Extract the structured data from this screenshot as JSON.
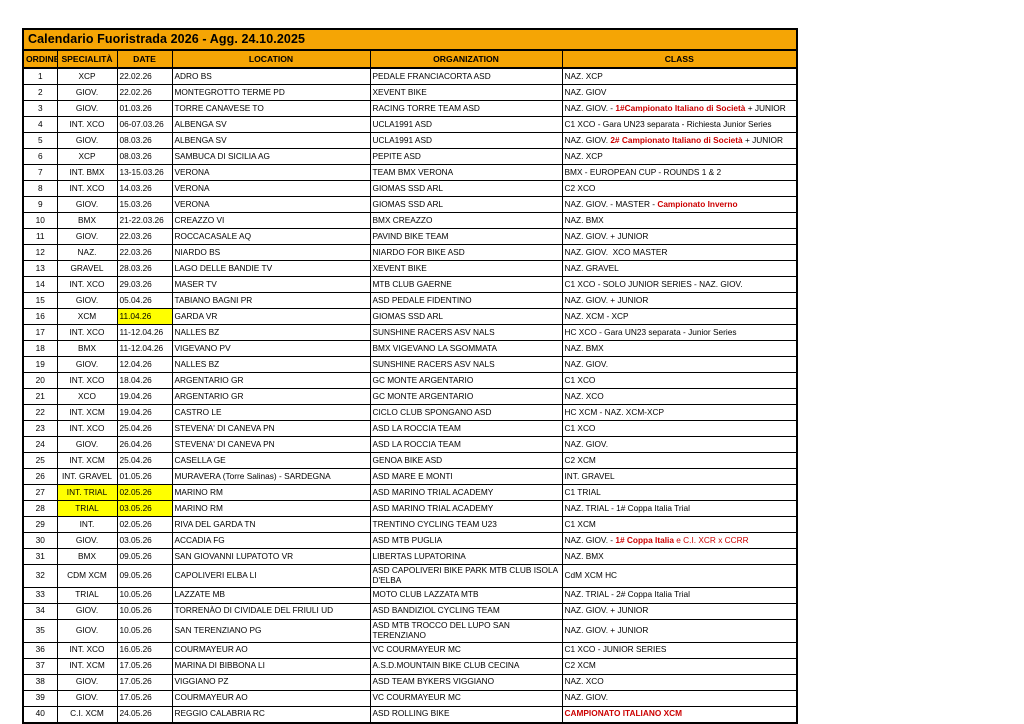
{
  "page": {
    "title": "Calendario Fuoristrada 2026 - Agg. 24.10.2025"
  },
  "colors": {
    "header_bg": "#F5A505",
    "highlight_yellow": "#FFFF00",
    "alert_red": "#CC0000",
    "border": "#000000"
  },
  "table": {
    "columns": [
      {
        "key": "ordine",
        "label": "ORDINE"
      },
      {
        "key": "specialita",
        "label": "SPECIALITÀ"
      },
      {
        "key": "date",
        "label": "DATE"
      },
      {
        "key": "location",
        "label": "LOCATION"
      },
      {
        "key": "organization",
        "label": "ORGANIZATION"
      },
      {
        "key": "class",
        "label": "CLASS"
      }
    ],
    "rows": [
      {
        "ordine": "1",
        "specialita": "XCP",
        "date": "22.02.26",
        "location": "ADRO BS",
        "organization": "PEDALE FRANCIACORTA ASD",
        "class_segments": [
          {
            "text": "NAZ. XCP",
            "style": "normal"
          }
        ]
      },
      {
        "ordine": "2",
        "specialita": "GIOV.",
        "date": "22.02.26",
        "location": "MONTEGROTTO TERME PD",
        "organization": "XEVENT BIKE",
        "class_segments": [
          {
            "text": "NAZ. GIOV",
            "style": "normal"
          }
        ]
      },
      {
        "ordine": "3",
        "specialita": "GIOV.",
        "date": "01.03.26",
        "location": "TORRE CANAVESE TO",
        "organization": "RACING TORRE TEAM ASD",
        "class_segments": [
          {
            "text": "NAZ. GIOV. - ",
            "style": "normal"
          },
          {
            "text": "1#Campionato Italiano di Società",
            "style": "red-bold"
          },
          {
            "text": " + JUNIOR",
            "style": "normal"
          }
        ]
      },
      {
        "ordine": "4",
        "specialita": "INT. XCO",
        "date": "06-07.03.26",
        "location": "ALBENGA SV",
        "organization": "UCLA1991 ASD",
        "class_segments": [
          {
            "text": "C1 XCO - Gara UN23 separata - Richiesta Junior Series",
            "style": "normal"
          }
        ]
      },
      {
        "ordine": "5",
        "specialita": "GIOV.",
        "date": "08.03.26",
        "location": "ALBENGA SV",
        "organization": "UCLA1991 ASD",
        "class_segments": [
          {
            "text": "NAZ. GIOV. ",
            "style": "normal"
          },
          {
            "text": "2# Campionato Italiano di Società",
            "style": "red-bold"
          },
          {
            "text": " + JUNIOR",
            "style": "normal"
          }
        ]
      },
      {
        "ordine": "6",
        "specialita": "XCP",
        "date": "08.03.26",
        "location": "SAMBUCA DI SICILIA AG",
        "organization": "PEPITE ASD",
        "class_segments": [
          {
            "text": "NAZ. XCP",
            "style": "normal"
          }
        ]
      },
      {
        "ordine": "7",
        "specialita": "INT. BMX",
        "date": "13-15.03.26",
        "location": "VERONA",
        "organization": "TEAM BMX VERONA",
        "class_segments": [
          {
            "text": "BMX - EUROPEAN CUP - ROUNDS 1 & 2",
            "style": "normal"
          }
        ]
      },
      {
        "ordine": "8",
        "specialita": "INT. XCO",
        "date": "14.03.26",
        "location": "VERONA",
        "organization": "GIOMAS SSD ARL",
        "class_segments": [
          {
            "text": "C2 XCO",
            "style": "normal"
          }
        ]
      },
      {
        "ordine": "9",
        "specialita": "GIOV.",
        "date": "15.03.26",
        "location": "VERONA",
        "organization": "GIOMAS SSD ARL",
        "class_segments": [
          {
            "text": "NAZ. GIOV. - MASTER - ",
            "style": "normal"
          },
          {
            "text": "Campionato Inverno",
            "style": "red-bold"
          }
        ]
      },
      {
        "ordine": "10",
        "specialita": "BMX",
        "date": "21-22.03.26",
        "location": "CREAZZO VI",
        "organization": "BMX CREAZZO",
        "class_segments": [
          {
            "text": "NAZ. BMX",
            "style": "normal"
          }
        ]
      },
      {
        "ordine": "11",
        "specialita": "GIOV.",
        "date": "22.03.26",
        "location": "ROCCACASALE AQ",
        "organization": "PAVIND BIKE TEAM",
        "class_segments": [
          {
            "text": "NAZ. GIOV. + JUNIOR",
            "style": "normal"
          }
        ]
      },
      {
        "ordine": "12",
        "specialita": "NAZ.",
        "date": "22.03.26",
        "location": "NIARDO BS",
        "organization": "NIARDO FOR BIKE ASD",
        "class_segments": [
          {
            "text": "NAZ. GIOV.  XCO MASTER",
            "style": "normal"
          }
        ]
      },
      {
        "ordine": "13",
        "specialita": "GRAVEL",
        "date": "28.03.26",
        "location": "LAGO DELLE BANDIE TV",
        "organization": "XEVENT BIKE",
        "class_segments": [
          {
            "text": "NAZ. GRAVEL",
            "style": "normal"
          }
        ]
      },
      {
        "ordine": "14",
        "specialita": "INT. XCO",
        "date": "29.03.26",
        "location": "MASER TV",
        "organization": "MTB CLUB GAERNE",
        "class_segments": [
          {
            "text": "C1 XCO - SOLO JUNIOR SERIES - NAZ. GIOV.",
            "style": "normal"
          }
        ]
      },
      {
        "ordine": "15",
        "specialita": "GIOV.",
        "date": "05.04.26",
        "location": "TABIANO BAGNI PR",
        "organization": "ASD PEDALE FIDENTINO",
        "class_segments": [
          {
            "text": "NAZ. GIOV. + JUNIOR",
            "style": "normal"
          }
        ]
      },
      {
        "ordine": "16",
        "specialita": "XCM",
        "date": "11.04.26",
        "date_hl": true,
        "location": "GARDA VR",
        "organization": "GIOMAS SSD ARL",
        "class_segments": [
          {
            "text": "NAZ. XCM - XCP",
            "style": "normal"
          }
        ]
      },
      {
        "ordine": "17",
        "specialita": "INT. XCO",
        "date": "11-12.04.26",
        "location": "NALLES BZ",
        "organization": "SUNSHINE RACERS ASV NALS",
        "class_segments": [
          {
            "text": "HC XCO - Gara UN23 separata - Junior Series",
            "style": "normal"
          }
        ]
      },
      {
        "ordine": "18",
        "specialita": "BMX",
        "date": "11-12.04.26",
        "location": "VIGEVANO PV",
        "organization": "BMX VIGEVANO LA SGOMMATA",
        "class_segments": [
          {
            "text": "NAZ. BMX",
            "style": "normal"
          }
        ]
      },
      {
        "ordine": "19",
        "specialita": "GIOV.",
        "date": "12.04.26",
        "location": "NALLES BZ",
        "organization": "SUNSHINE RACERS ASV NALS",
        "class_segments": [
          {
            "text": "NAZ. GIOV.",
            "style": "normal"
          }
        ]
      },
      {
        "ordine": "20",
        "specialita": "INT. XCO",
        "date": "18.04.26",
        "location": "ARGENTARIO GR",
        "organization": "GC MONTE ARGENTARIO",
        "class_segments": [
          {
            "text": "C1 XCO",
            "style": "normal"
          }
        ]
      },
      {
        "ordine": "21",
        "specialita": "XCO",
        "date": "19.04.26",
        "location": "ARGENTARIO GR",
        "organization": "GC MONTE ARGENTARIO",
        "class_segments": [
          {
            "text": "NAZ. XCO",
            "style": "normal"
          }
        ]
      },
      {
        "ordine": "22",
        "specialita": "INT. XCM",
        "date": "19.04.26",
        "location": "CASTRO LE",
        "organization": "CICLO CLUB SPONGANO ASD",
        "class_segments": [
          {
            "text": "HC XCM - NAZ. XCM-XCP",
            "style": "normal"
          }
        ]
      },
      {
        "ordine": "23",
        "specialita": "INT. XCO",
        "date": "25.04.26",
        "location": "STEVENA' DI CANEVA PN",
        "organization": "ASD LA ROCCIA TEAM",
        "class_segments": [
          {
            "text": "C1 XCO",
            "style": "normal"
          }
        ]
      },
      {
        "ordine": "24",
        "specialita": "GIOV.",
        "date": "26.04.26",
        "location": "STEVENA' DI CANEVA PN",
        "organization": "ASD LA ROCCIA TEAM",
        "class_segments": [
          {
            "text": "NAZ. GIOV.",
            "style": "normal"
          }
        ]
      },
      {
        "ordine": "25",
        "specialita": "INT. XCM",
        "date": "25.04.26",
        "location": "CASELLA GE",
        "organization": "GENOA BIKE ASD",
        "class_segments": [
          {
            "text": "C2 XCM",
            "style": "normal"
          }
        ]
      },
      {
        "ordine": "26",
        "specialita": "INT. GRAVEL",
        "date": "01.05.26",
        "location": "MURAVERA (Torre Salinas) - SARDEGNA",
        "organization": "ASD MARE E MONTI",
        "class_segments": [
          {
            "text": "INT. GRAVEL",
            "style": "normal"
          }
        ]
      },
      {
        "ordine": "27",
        "specialita": "INT. TRIAL",
        "spec_hl": true,
        "date": "02.05.26",
        "date_hl": true,
        "location": "MARINO RM",
        "organization": "ASD MARINO TRIAL ACADEMY",
        "class_segments": [
          {
            "text": "C1 TRIAL",
            "style": "normal"
          }
        ]
      },
      {
        "ordine": "28",
        "specialita": "TRIAL",
        "spec_hl": true,
        "date": "03.05.26",
        "date_hl": true,
        "location": "MARINO RM",
        "organization": "ASD MARINO TRIAL ACADEMY",
        "class_segments": [
          {
            "text": "NAZ. TRIAL - 1# Coppa Italia Trial",
            "style": "normal"
          }
        ]
      },
      {
        "ordine": "29",
        "specialita": "INT.",
        "date": "02.05.26",
        "location": "RIVA DEL GARDA TN",
        "organization": "TRENTINO CYCLING TEAM U23",
        "class_segments": [
          {
            "text": "C1 XCM",
            "style": "normal"
          }
        ]
      },
      {
        "ordine": "30",
        "specialita": "GIOV.",
        "date": "03.05.26",
        "location": "ACCADIA FG",
        "organization": "ASD MTB PUGLIA",
        "class_segments": [
          {
            "text": "NAZ. GIOV. - ",
            "style": "normal"
          },
          {
            "text": "1# Coppa Italia",
            "style": "red-bold"
          },
          {
            "text": " e C.I. XCR x CCRR",
            "style": "red"
          }
        ]
      },
      {
        "ordine": "31",
        "specialita": "BMX",
        "date": "09.05.26",
        "location": "SAN GIOVANNI LUPATOTO VR",
        "organization": "LIBERTAS LUPATORINA",
        "class_segments": [
          {
            "text": "NAZ. BMX",
            "style": "normal"
          }
        ]
      },
      {
        "ordine": "32",
        "specialita": "CDM XCM",
        "date": "09.05.26",
        "location": "CAPOLIVERI ELBA LI",
        "organization": "ASD CAPOLIVERI BIKE PARK MTB CLUB ISOLA D'ELBA",
        "class_segments": [
          {
            "text": "CdM XCM HC",
            "style": "normal"
          }
        ]
      },
      {
        "ordine": "33",
        "specialita": "TRIAL",
        "date": "10.05.26",
        "location": "LAZZATE MB",
        "organization": "MOTO CLUB LAZZATA MTB",
        "class_segments": [
          {
            "text": "NAZ. TRIAL - 2# Coppa Italia Trial",
            "style": "normal"
          }
        ]
      },
      {
        "ordine": "34",
        "specialita": "GIOV.",
        "date": "10.05.26",
        "location": "TORRENÀO DI CIVIDALE DEL FRIULI UD",
        "organization": "ASD BANDIZIOL CYCLING TEAM",
        "class_segments": [
          {
            "text": "NAZ. GIOV. + JUNIOR",
            "style": "normal"
          }
        ]
      },
      {
        "ordine": "35",
        "specialita": "GIOV.",
        "date": "10.05.26",
        "location": "SAN TERENZIANO PG",
        "organization": "ASD MTB TROCCO DEL LUPO SAN TERENZIANO",
        "class_segments": [
          {
            "text": "NAZ. GIOV. + JUNIOR",
            "style": "normal"
          }
        ]
      },
      {
        "ordine": "36",
        "specialita": "INT. XCO",
        "date": "16.05.26",
        "location": "COURMAYEUR AO",
        "organization": "VC COURMAYEUR MC",
        "class_segments": [
          {
            "text": "C1 XCO - JUNIOR SERIES",
            "style": "normal"
          }
        ]
      },
      {
        "ordine": "37",
        "specialita": "INT. XCM",
        "date": "17.05.26",
        "location": "MARINA DI BIBBONA LI",
        "organization": "A.S.D.MOUNTAIN BIKE CLUB CECINA",
        "class_segments": [
          {
            "text": "C2 XCM",
            "style": "normal"
          }
        ]
      },
      {
        "ordine": "38",
        "specialita": "GIOV.",
        "date": "17.05.26",
        "location": "VIGGIANO PZ",
        "organization": "ASD TEAM BYKERS VIGGIANO",
        "class_segments": [
          {
            "text": "NAZ. XCO",
            "style": "normal"
          }
        ]
      },
      {
        "ordine": "39",
        "specialita": "GIOV.",
        "date": "17.05.26",
        "location": "COURMAYEUR AO",
        "organization": "VC COURMAYEUR MC",
        "class_segments": [
          {
            "text": "NAZ. GIOV.",
            "style": "normal"
          }
        ]
      },
      {
        "ordine": "40",
        "specialita": "C.I. XCM",
        "date": "24.05.26",
        "location": "REGGIO CALABRIA RC",
        "organization": "ASD ROLLING BIKE",
        "class_segments": [
          {
            "text": "CAMPIONATO ITALIANO XCM",
            "style": "red-bold"
          }
        ]
      }
    ]
  }
}
